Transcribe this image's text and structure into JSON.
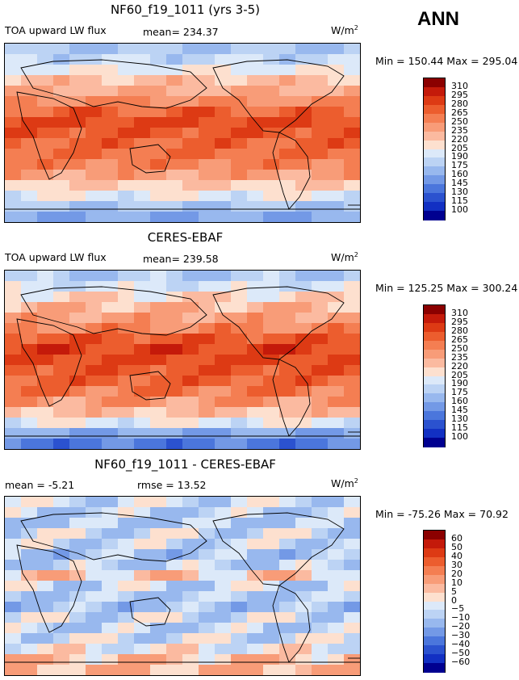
{
  "season_label": "ANN",
  "panels": [
    {
      "title": "NF60_f19_1011 (yrs 3-5)",
      "left_label": "TOA upward LW flux",
      "stat_label": "mean= 234.37",
      "units": "W/m",
      "units_sup": "2",
      "minmax": "Min = 150.44 Max = 295.04",
      "colorbar_labels": [
        "310",
        "295",
        "280",
        "265",
        "250",
        "235",
        "220",
        "205",
        "190",
        "175",
        "160",
        "145",
        "130",
        "115",
        "100"
      ]
    },
    {
      "title": "CERES-EBAF",
      "left_label": "TOA upward LW flux",
      "stat_label": "mean= 239.58",
      "units": "W/m",
      "units_sup": "2",
      "minmax": "Min = 125.25 Max = 300.24",
      "colorbar_labels": [
        "310",
        "295",
        "280",
        "265",
        "250",
        "235",
        "220",
        "205",
        "190",
        "175",
        "160",
        "145",
        "130",
        "115",
        "100"
      ]
    },
    {
      "title": "NF60_f19_1011 - CERES-EBAF",
      "left_label": "mean =   -5.21",
      "stat_label": "rmse =   13.52",
      "units": "W/m",
      "units_sup": "2",
      "minmax": "Min = -75.26 Max =  70.92",
      "colorbar_labels": [
        "60",
        "50",
        "40",
        "30",
        "20",
        "10",
        "5",
        "0",
        "−5",
        "−10",
        "−20",
        "−30",
        "−40",
        "−50",
        "−60"
      ]
    }
  ],
  "colors": {
    "abs_scale": [
      "#8b0000",
      "#c41a0a",
      "#dd3a14",
      "#ec5d2e",
      "#f47e52",
      "#f89c78",
      "#fbbaa0",
      "#fde0cf",
      "#dce9f9",
      "#bcd3f4",
      "#98b8ee",
      "#7399e6",
      "#4b76dc",
      "#2b52cf",
      "#1230c3",
      "#000090"
    ],
    "diff_scale": [
      "#8b0000",
      "#c41a0a",
      "#dd3a14",
      "#ec5d2e",
      "#f47e52",
      "#f89c78",
      "#fbbaa0",
      "#fde0cf",
      "#dce9f9",
      "#bcd3f4",
      "#98b8ee",
      "#7399e6",
      "#4b76dc",
      "#2b52cf",
      "#1230c3",
      "#000090"
    ]
  },
  "chart_data": [
    {
      "type": "heatmap",
      "title": "NF60_f19_1011 (yrs 3-5)",
      "variable": "TOA upward LW flux",
      "units": "W/m2",
      "mean": 234.37,
      "min": 150.44,
      "max": 295.04,
      "levels": [
        100,
        115,
        130,
        145,
        160,
        175,
        190,
        205,
        220,
        235,
        250,
        265,
        280,
        295,
        310
      ],
      "lat_band_values": [
        175,
        185,
        205,
        225,
        235,
        250,
        270,
        280,
        275,
        270,
        265,
        255,
        240,
        220,
        200,
        175,
        160
      ]
    },
    {
      "type": "heatmap",
      "title": "CERES-EBAF",
      "variable": "TOA upward LW flux",
      "units": "W/m2",
      "mean": 239.58,
      "min": 125.25,
      "max": 300.24,
      "levels": [
        100,
        115,
        130,
        145,
        160,
        175,
        190,
        205,
        220,
        235,
        250,
        265,
        280,
        295,
        310
      ],
      "lat_band_values": [
        180,
        195,
        215,
        230,
        240,
        255,
        275,
        285,
        280,
        275,
        270,
        260,
        245,
        225,
        200,
        160,
        140
      ]
    },
    {
      "type": "heatmap",
      "title": "NF60_f19_1011 - CERES-EBAF",
      "variable": "difference",
      "units": "W/m2",
      "mean": -5.21,
      "rmse": 13.52,
      "min": -75.26,
      "max": 70.92,
      "levels": [
        -60,
        -50,
        -40,
        -30,
        -20,
        -10,
        -5,
        0,
        5,
        10,
        20,
        30,
        40,
        50,
        60
      ],
      "lat_band_values": [
        -5,
        -8,
        -10,
        -4,
        -6,
        -12,
        -8,
        4,
        -6,
        -10,
        -12,
        -4,
        -8,
        -4,
        0,
        8,
        10
      ]
    }
  ]
}
